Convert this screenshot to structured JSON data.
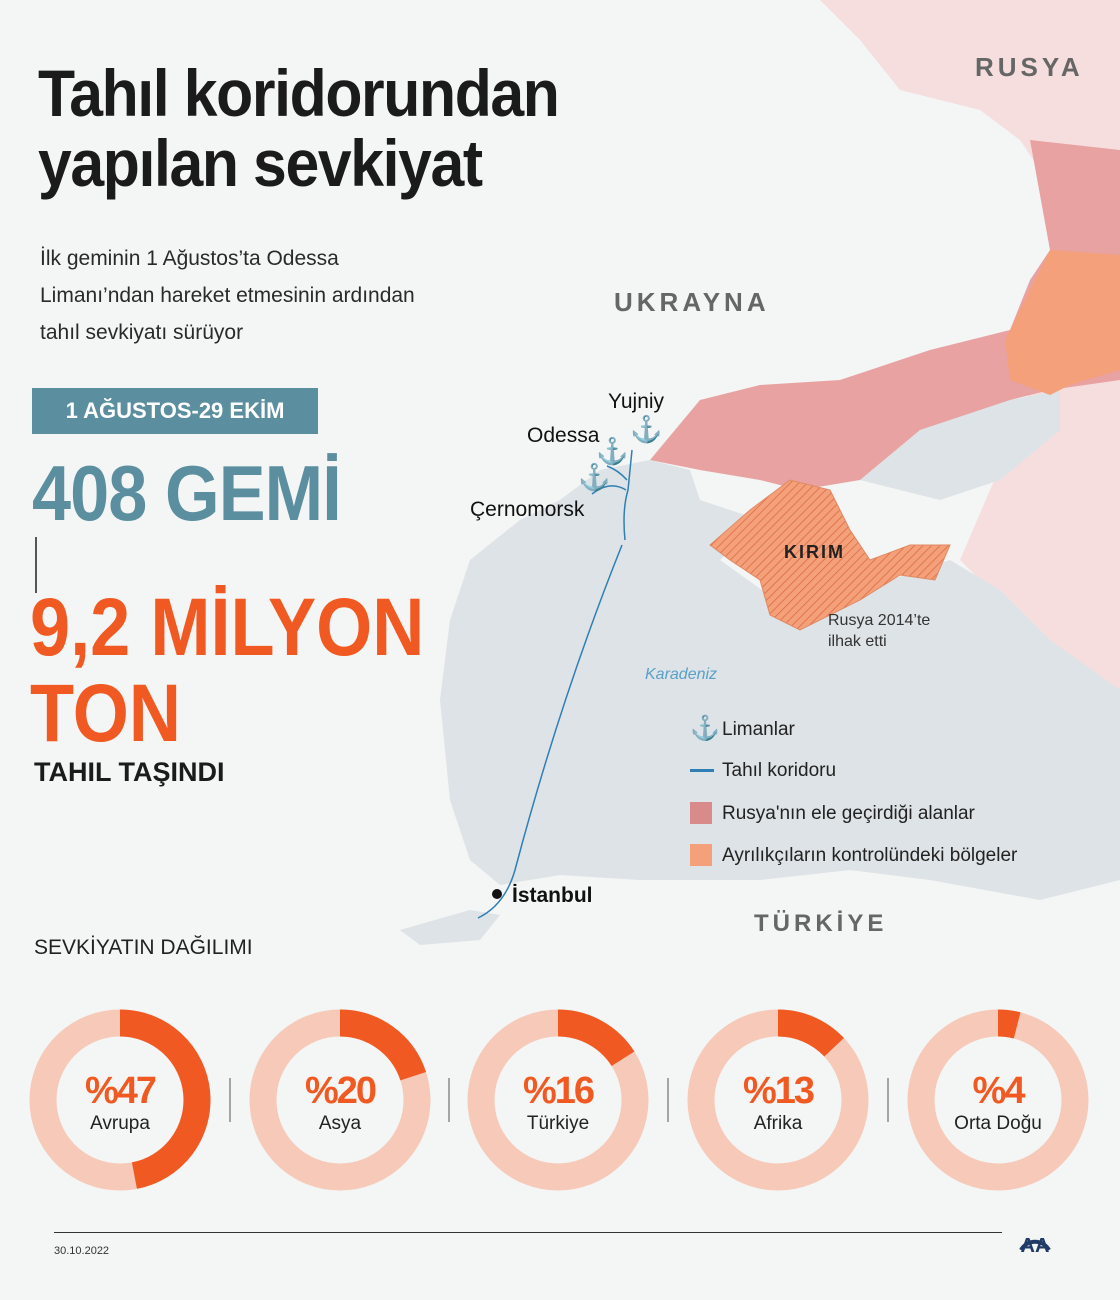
{
  "title": [
    "Tahıl koridorundan",
    "yapılan sevkiyat"
  ],
  "subtitle": [
    "İlk geminin 1 Ağustos’ta Odessa",
    "Limanı’ndan hareket etmesinin ardından",
    "tahıl sevkiyatı sürüyor"
  ],
  "period_badge": "1 AĞUSTOS-29 EKİM",
  "ships": "408 GEMİ",
  "tons": [
    "9,2 MİLYON",
    "TON"
  ],
  "carried": "TAHIL TAŞINDI",
  "map": {
    "countries": {
      "russia": "RUSYA",
      "ukraine": "UKRAYNA",
      "turkey": "TÜRKİYE"
    },
    "crimea": "KIRIM",
    "crimea_note": [
      "Rusya 2014’te",
      "ilhak etti"
    ],
    "sea": "Karadeniz",
    "ports": [
      "Yujniy",
      "Odessa",
      "Çernomorsk"
    ],
    "istanbul": "İstanbul",
    "colors": {
      "russia_held": "#e8a2a2",
      "separatist": "#f4a07a",
      "corridor": "#2f7fb5",
      "sea": "#dde3e6",
      "russia": "#f6dede"
    }
  },
  "legend": [
    {
      "icon": "anchor-icon",
      "label": "Limanlar"
    },
    {
      "icon": "line",
      "label": "Tahıl koridoru"
    },
    {
      "icon": "swatch",
      "color": "#d98b8b",
      "label": "Rusya'nın ele geçirdiği alanlar"
    },
    {
      "icon": "swatch",
      "color": "#f4a07a",
      "label": "Ayrılıkçıların kontrolündeki bölgeler"
    }
  ],
  "distribution_title": "SEVKİYATIN DAĞILIMI",
  "chart_data": {
    "type": "donut",
    "categories": [
      "Avrupa",
      "Asya",
      "Türkiye",
      "Afrika",
      "Orta Doğu"
    ],
    "values": [
      47,
      20,
      16,
      13,
      4
    ],
    "labels": [
      "%47",
      "%20",
      "%16",
      "%13",
      "%4"
    ],
    "unit": "%",
    "colors": {
      "fill": "#f05a22",
      "track": "#f6c9b8"
    }
  },
  "date": "30.10.2022",
  "logo": "AA"
}
